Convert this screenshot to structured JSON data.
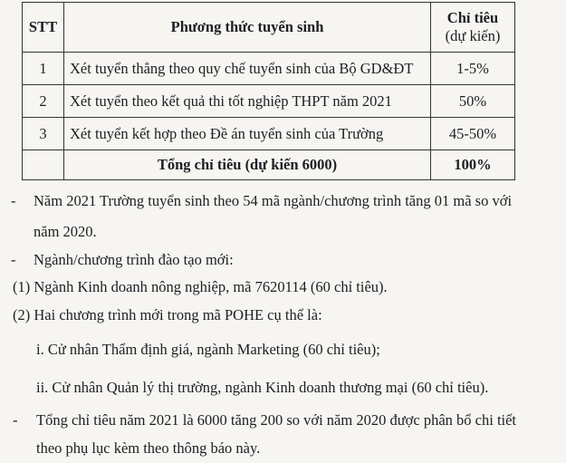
{
  "table": {
    "headers": {
      "stt": "STT",
      "method": "Phương thức tuyển sinh",
      "quota": "Chỉ tiêu",
      "quota_sub": "(dự kiến)"
    },
    "rows": [
      {
        "stt": "1",
        "method": "Xét tuyển thẳng theo quy chế tuyển sinh của Bộ GD&ĐT",
        "quota": "1-5%"
      },
      {
        "stt": "2",
        "method": "Xét tuyển theo kết quả thi tốt nghiệp THPT năm 2021",
        "quota": "50%"
      },
      {
        "stt": "3",
        "method": "Xét tuyển kết hợp theo Đề án tuyển sinh của Trường",
        "quota": "45-50%"
      }
    ],
    "total": {
      "label": "Tổng chỉ tiêu (dự kiến 6000)",
      "value": "100%"
    }
  },
  "body": {
    "bullet": "-",
    "p1a": "Năm 2021 Trường tuyển sinh theo 54 mã ngành/chương trình tăng 01 mã so với",
    "p1b": "năm 2020.",
    "p2": "Ngành/chương trình đào tạo mới:",
    "p3": "(1) Ngành Kinh doanh nông nghiệp, mã 7620114 (60 chỉ tiêu).",
    "p4": "(2) Hai chương trình mới trong mã POHE cụ thể là:",
    "p5": "i. Cử nhân Thẩm định giá, ngành Marketing (60 chỉ tiêu);",
    "p6": "ii. Cử nhân Quản lý thị trường, ngành Kinh doanh thương mại (60 chỉ tiêu).",
    "p7a": "Tổng chỉ tiêu năm 2021 là 6000 tăng 200 so với năm 2020 được phân bổ chi tiết",
    "p7b": "theo phụ lục kèm theo thông báo này."
  }
}
